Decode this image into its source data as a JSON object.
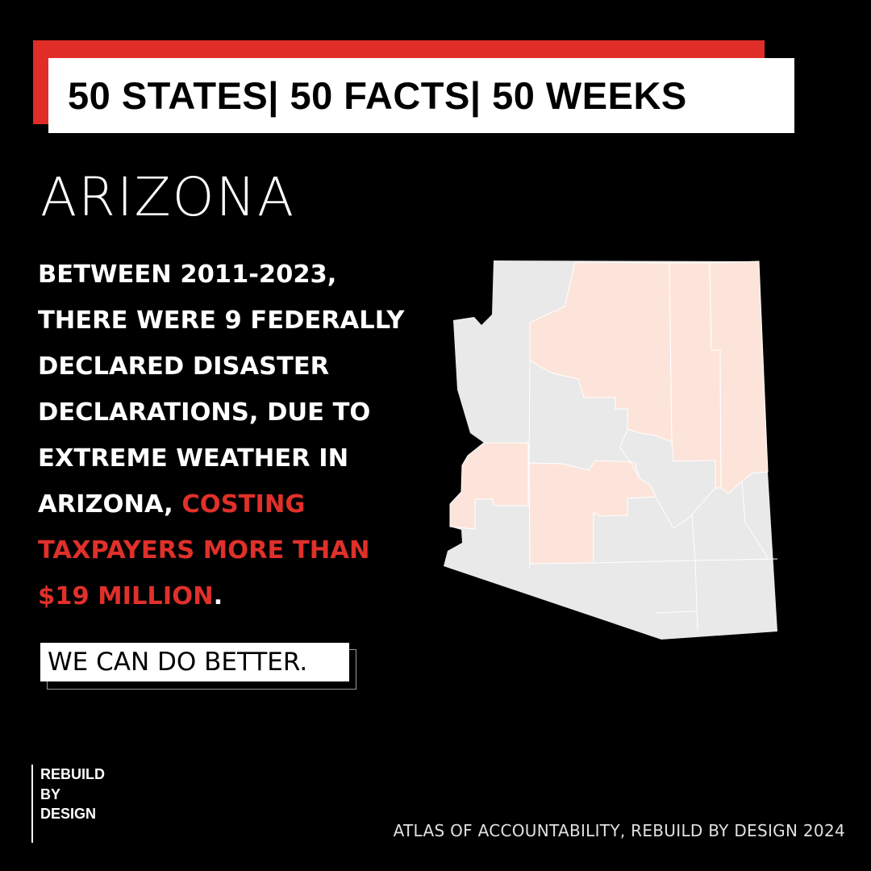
{
  "header": {
    "title": "50 STATES| 50 FACTS| 50 WEEKS"
  },
  "state_name": "ARIZONA",
  "body": {
    "lines": [
      "BETWEEN 2011-2023,",
      "THERE WERE 9 FEDERALLY",
      "DECLARED DISASTER",
      "DECLARATIONS, DUE TO",
      "EXTREME WEATHER IN"
    ],
    "line6_white": "ARIZONA, ",
    "line6_red": "COSTING",
    "line7_red": "TAXPAYERS MORE THAN",
    "line8_red": "$19 MILLION",
    "line8_white": "."
  },
  "cta": "WE CAN DO BETTER.",
  "logo": {
    "lines": [
      "REBUILD",
      "BY",
      "DESIGN"
    ]
  },
  "footer": "ATLAS OF ACCOUNTABILITY, REBUILD BY DESIGN 2024",
  "map": {
    "region": "Arizona counties",
    "highlighted_counties": [
      "Coconino",
      "Navajo",
      "Apache",
      "La Paz",
      "Maricopa"
    ],
    "colors": {
      "highlight": "#fde4da",
      "base": "#e9e9e9",
      "border": "#ffffff",
      "accent_red": "#e0302a"
    }
  }
}
